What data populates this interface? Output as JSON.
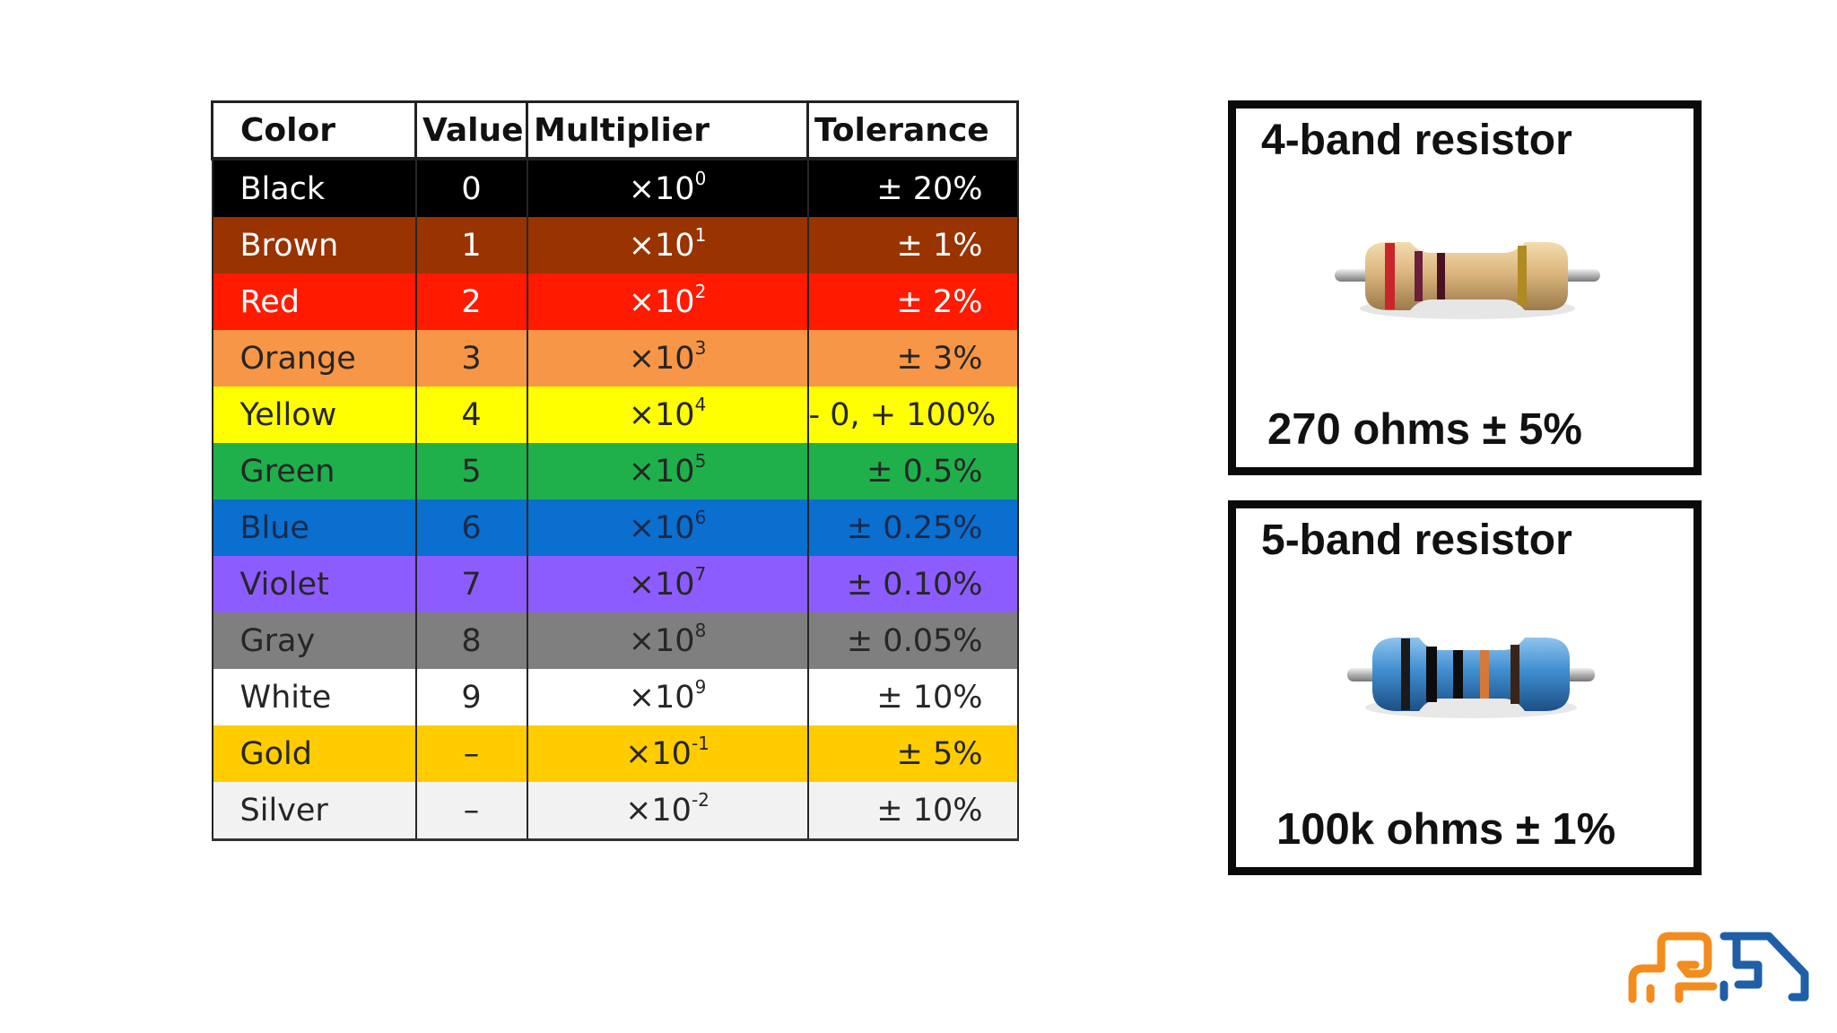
{
  "table": {
    "headers": {
      "color": "Color",
      "value": "Value",
      "multiplier": "Multiplier",
      "tolerance": "Tolerance"
    },
    "rows": [
      {
        "color": "Black",
        "value": "0",
        "mult_base": "×10",
        "mult_exp": "0",
        "tolerance": "± 20%",
        "bg": "#000000",
        "fg": "#ffffff"
      },
      {
        "color": "Brown",
        "value": "1",
        "mult_base": "×10",
        "mult_exp": "1",
        "tolerance": "± 1%",
        "bg": "#993300",
        "fg": "#ffffff"
      },
      {
        "color": "Red",
        "value": "2",
        "mult_base": "×10",
        "mult_exp": "2",
        "tolerance": "± 2%",
        "bg": "#ff1a00",
        "fg": "#ffffff"
      },
      {
        "color": "Orange",
        "value": "3",
        "mult_base": "×10",
        "mult_exp": "3",
        "tolerance": "± 3%",
        "bg": "#f79646",
        "fg": "#262626"
      },
      {
        "color": "Yellow",
        "value": "4",
        "mult_base": "×10",
        "mult_exp": "4",
        "tolerance": "- 0, + 100%",
        "bg": "#ffff00",
        "fg": "#262626"
      },
      {
        "color": "Green",
        "value": "5",
        "mult_base": "×10",
        "mult_exp": "5",
        "tolerance": "± 0.5%",
        "bg": "#1fb04c",
        "fg": "#262626"
      },
      {
        "color": "Blue",
        "value": "6",
        "mult_base": "×10",
        "mult_exp": "6",
        "tolerance": "± 0.25%",
        "bg": "#0a6fcf",
        "fg": "#1a2a4a"
      },
      {
        "color": "Violet",
        "value": "7",
        "mult_base": "×10",
        "mult_exp": "7",
        "tolerance": "± 0.10%",
        "bg": "#8d5cff",
        "fg": "#262626"
      },
      {
        "color": "Gray",
        "value": "8",
        "mult_base": "×10",
        "mult_exp": "8",
        "tolerance": "± 0.05%",
        "bg": "#7f7f7f",
        "fg": "#262626"
      },
      {
        "color": "White",
        "value": "9",
        "mult_base": "×10",
        "mult_exp": "9",
        "tolerance": "± 10%",
        "bg": "#ffffff",
        "fg": "#262626"
      },
      {
        "color": "Gold",
        "value": "–",
        "mult_base": "×10",
        "mult_exp": "-1",
        "tolerance": "± 5%",
        "bg": "#ffcc00",
        "fg": "#262626"
      },
      {
        "color": "Silver",
        "value": "–",
        "mult_base": "×10",
        "mult_exp": "-2",
        "tolerance": "± 10%",
        "bg": "#f2f2f2",
        "fg": "#262626"
      }
    ]
  },
  "cards": {
    "four_band": {
      "title": "4-band resistor",
      "value": "270 ohms ± 5%"
    },
    "five_band": {
      "title": "5-band resistor",
      "value": "100k ohms ± 1%"
    }
  },
  "logo": {
    "icon": "brand-logo-icon",
    "colors": [
      "#f28c1e",
      "#1f5fa8"
    ]
  }
}
